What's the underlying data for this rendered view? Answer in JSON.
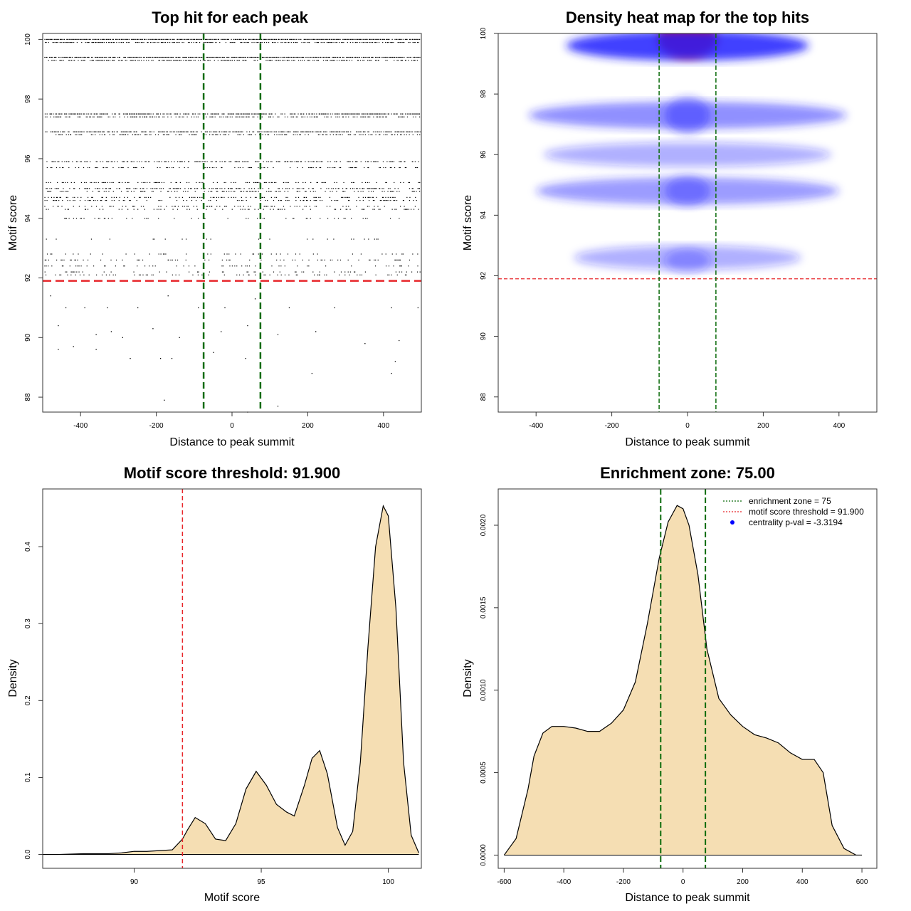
{
  "colors": {
    "threshold_red": "#e8262a",
    "zone_green": "#0b6b0b",
    "fill_wheat": "#f5deb3",
    "heat_blue": "#2020ff",
    "heat_red": "#ff0000",
    "point_blue": "#0000ff"
  },
  "chart_data": [
    {
      "id": "top-hits",
      "type": "scatter",
      "title": "Top hit for each peak",
      "xlabel": "Distance to peak summit",
      "ylabel": "Motif score",
      "xlim": [
        -500,
        500
      ],
      "ylim": [
        87.5,
        100.2
      ],
      "x_ticks": [
        -400,
        -200,
        0,
        200,
        400
      ],
      "y_ticks": [
        88,
        90,
        92,
        94,
        96,
        98,
        100
      ],
      "hlines": [
        91.9
      ],
      "vlines": [
        -75,
        75
      ],
      "score_levels": [
        {
          "score": 100.0,
          "density": 0.95
        },
        {
          "score": 99.9,
          "density": 0.6
        },
        {
          "score": 99.4,
          "density": 0.9
        },
        {
          "score": 99.3,
          "density": 0.6
        },
        {
          "score": 97.5,
          "density": 0.8
        },
        {
          "score": 97.4,
          "density": 0.5
        },
        {
          "score": 96.9,
          "density": 0.75
        },
        {
          "score": 96.8,
          "density": 0.4
        },
        {
          "score": 95.9,
          "density": 0.55
        },
        {
          "score": 95.7,
          "density": 0.3
        },
        {
          "score": 95.2,
          "density": 0.35
        },
        {
          "score": 95.0,
          "density": 0.4
        },
        {
          "score": 94.9,
          "density": 0.3
        },
        {
          "score": 94.7,
          "density": 0.3
        },
        {
          "score": 94.6,
          "density": 0.35
        },
        {
          "score": 94.4,
          "density": 0.25
        },
        {
          "score": 94.3,
          "density": 0.2
        },
        {
          "score": 94.0,
          "density": 0.15
        },
        {
          "score": 93.3,
          "density": 0.05
        },
        {
          "score": 92.8,
          "density": 0.15
        },
        {
          "score": 92.6,
          "density": 0.2
        },
        {
          "score": 92.4,
          "density": 0.15
        },
        {
          "score": 92.2,
          "density": 0.15
        },
        {
          "score": 92.1,
          "density": 0.2
        }
      ],
      "sparse_points": [
        [
          -480,
          91.4
        ],
        [
          -440,
          91.0
        ],
        [
          -390,
          91.0
        ],
        [
          -330,
          91.0
        ],
        [
          -250,
          91.0
        ],
        [
          -170,
          91.4
        ],
        [
          -90,
          91.0
        ],
        [
          -20,
          91.0
        ],
        [
          60,
          91.3
        ],
        [
          150,
          91.0
        ],
        [
          270,
          91.0
        ],
        [
          420,
          91.0
        ],
        [
          490,
          91.0
        ],
        [
          -460,
          90.4
        ],
        [
          -360,
          90.1
        ],
        [
          -320,
          90.2
        ],
        [
          -290,
          90.0
        ],
        [
          -210,
          90.3
        ],
        [
          -140,
          90.0
        ],
        [
          -30,
          90.2
        ],
        [
          40,
          90.4
        ],
        [
          120,
          90.1
        ],
        [
          220,
          90.2
        ],
        [
          350,
          89.8
        ],
        [
          440,
          89.9
        ],
        [
          -460,
          89.6
        ],
        [
          -420,
          89.7
        ],
        [
          -360,
          89.6
        ],
        [
          -270,
          89.3
        ],
        [
          -190,
          89.3
        ],
        [
          -160,
          89.3
        ],
        [
          -50,
          89.5
        ],
        [
          35,
          89.3
        ],
        [
          430,
          89.2
        ],
        [
          210,
          88.8
        ],
        [
          420,
          88.8
        ],
        [
          -180,
          87.9
        ],
        [
          40,
          87.5
        ],
        [
          120,
          87.7
        ]
      ]
    },
    {
      "id": "density-heatmap",
      "type": "heatmap",
      "title": "Density heat map for the top hits",
      "xlabel": "Distance to peak summit",
      "ylabel": "Motif score",
      "xlim": [
        -500,
        500
      ],
      "ylim": [
        87.5,
        100.0
      ],
      "x_ticks": [
        -400,
        -200,
        0,
        200,
        400
      ],
      "y_ticks": [
        88,
        90,
        92,
        94,
        96,
        98,
        100
      ],
      "hlines": [
        91.9
      ],
      "vlines": [
        -75,
        75
      ],
      "hotspots": [
        {
          "x": 0,
          "y": 99.8,
          "level": 1.0,
          "sx": 80,
          "sy": 0.6
        },
        {
          "x": 0,
          "y": 99.6,
          "level": 0.7,
          "sx": 320,
          "sy": 0.5
        },
        {
          "x": 0,
          "y": 97.3,
          "level": 0.35,
          "sx": 420,
          "sy": 0.45
        },
        {
          "x": 0,
          "y": 97.3,
          "level": 0.3,
          "sx": 60,
          "sy": 0.6
        },
        {
          "x": 0,
          "y": 96.0,
          "level": 0.2,
          "sx": 380,
          "sy": 0.4
        },
        {
          "x": 0,
          "y": 94.8,
          "level": 0.3,
          "sx": 400,
          "sy": 0.45
        },
        {
          "x": 0,
          "y": 94.8,
          "level": 0.25,
          "sx": 60,
          "sy": 0.5
        },
        {
          "x": 0,
          "y": 92.6,
          "level": 0.2,
          "sx": 300,
          "sy": 0.4
        },
        {
          "x": 0,
          "y": 92.5,
          "level": 0.15,
          "sx": 60,
          "sy": 0.4
        }
      ]
    },
    {
      "id": "score-density",
      "type": "area",
      "title": "Motif score threshold: 91.900",
      "xlabel": "Motif score",
      "ylabel": "Density",
      "xlim": [
        86.4,
        101.3
      ],
      "ylim": [
        -0.018,
        0.475
      ],
      "x_ticks": [
        90,
        95,
        100
      ],
      "y_ticks": [
        0.0,
        0.1,
        0.2,
        0.3,
        0.4
      ],
      "y_tick_labels": [
        "0.0",
        "0.1",
        "0.2",
        "0.3",
        "0.4"
      ],
      "vlines": [
        91.9
      ],
      "x": [
        86.4,
        87.0,
        88.0,
        89.0,
        89.5,
        90.0,
        90.5,
        91.0,
        91.5,
        91.9,
        92.1,
        92.4,
        92.8,
        93.2,
        93.6,
        94.0,
        94.4,
        94.8,
        95.2,
        95.6,
        96.0,
        96.3,
        96.7,
        97.0,
        97.3,
        97.6,
        98.0,
        98.3,
        98.6,
        98.9,
        99.2,
        99.5,
        99.8,
        100.0,
        100.3,
        100.6,
        100.9,
        101.2
      ],
      "y": [
        0.0,
        0.0,
        0.001,
        0.001,
        0.002,
        0.004,
        0.004,
        0.005,
        0.006,
        0.02,
        0.032,
        0.048,
        0.04,
        0.02,
        0.018,
        0.04,
        0.085,
        0.108,
        0.09,
        0.065,
        0.055,
        0.05,
        0.09,
        0.125,
        0.135,
        0.105,
        0.035,
        0.012,
        0.03,
        0.12,
        0.27,
        0.4,
        0.453,
        0.44,
        0.32,
        0.12,
        0.025,
        0.002
      ]
    },
    {
      "id": "distance-density",
      "type": "area",
      "title": "Enrichment zone: 75.00",
      "xlabel": "Distance to peak summit",
      "ylabel": "Density",
      "xlim": [
        -620,
        650
      ],
      "ylim": [
        -8e-05,
        0.00222
      ],
      "x_ticks": [
        -600,
        -400,
        -200,
        0,
        200,
        400,
        600
      ],
      "y_ticks": [
        0.0,
        0.0005,
        0.001,
        0.0015,
        0.002
      ],
      "y_tick_labels": [
        "0.0000",
        "0.0005",
        "0.0010",
        "0.0015",
        "0.0020"
      ],
      "vlines": [
        -75,
        75
      ],
      "legend": [
        {
          "label": "enrichment zone = 75",
          "kind": "dotted-line",
          "color": "#0b6b0b"
        },
        {
          "label": "motif score threshold = 91.900",
          "kind": "dotted-line",
          "color": "#e8262a"
        },
        {
          "label": "centrality p-val = -3.3194",
          "kind": "point",
          "color": "#0000ff"
        }
      ],
      "x": [
        -600,
        -560,
        -520,
        -500,
        -470,
        -440,
        -400,
        -360,
        -320,
        -280,
        -240,
        -200,
        -160,
        -120,
        -80,
        -50,
        -20,
        0,
        20,
        50,
        80,
        120,
        160,
        200,
        240,
        280,
        320,
        360,
        400,
        440,
        470,
        500,
        540,
        580,
        600
      ],
      "y": [
        0.0,
        0.0001,
        0.0004,
        0.0006,
        0.00074,
        0.00078,
        0.00078,
        0.00077,
        0.00075,
        0.00075,
        0.0008,
        0.00088,
        0.00105,
        0.0014,
        0.0018,
        0.00202,
        0.00212,
        0.0021,
        0.002,
        0.0017,
        0.00125,
        0.00095,
        0.00085,
        0.00078,
        0.00073,
        0.00071,
        0.00068,
        0.00062,
        0.00058,
        0.00058,
        0.0005,
        0.00018,
        4e-05,
        0.0,
        0.0
      ]
    }
  ]
}
